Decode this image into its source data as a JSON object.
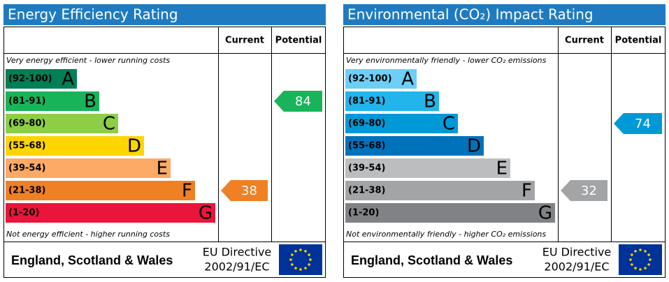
{
  "chart_data": [
    {
      "type": "epc",
      "title": "Energy Efficiency Rating",
      "columns": [
        "Current",
        "Potential"
      ],
      "top_note": "Very energy efficient - lower running costs",
      "bottom_note": "Not energy efficient - higher running costs",
      "categories": [
        "(92-100)",
        "(81-91)",
        "(69-80)",
        "(55-68)",
        "(39-54)",
        "(21-38)",
        "(1-20)"
      ],
      "letters": [
        "A",
        "B",
        "C",
        "D",
        "E",
        "F",
        "G"
      ],
      "colors": [
        "#008054",
        "#19b459",
        "#8dce46",
        "#ffd500",
        "#fcaa65",
        "#ef8023",
        "#e9153b"
      ],
      "current": 38,
      "potential": 84,
      "footer": {
        "region": "England, Scotland & Wales",
        "directive": "EU Directive",
        "code": "2002/91/EC"
      }
    },
    {
      "type": "epc",
      "title": "Environmental (CO₂) Impact Rating",
      "columns": [
        "Current",
        "Potential"
      ],
      "top_note": "Very environmentally friendly - lower CO₂ emissions",
      "bottom_note": "Not environmentally friendly - higher CO₂ emissions",
      "categories": [
        "(92-100)",
        "(81-91)",
        "(69-80)",
        "(55-68)",
        "(39-54)",
        "(21-38)",
        "(1-20)"
      ],
      "letters": [
        "A",
        "B",
        "C",
        "D",
        "E",
        "F",
        "G"
      ],
      "colors": [
        "#6dcff6",
        "#22b5eb",
        "#0099d8",
        "#0072bb",
        "#bbbdbf",
        "#a2a4a6",
        "#808285"
      ],
      "current": 32,
      "potential": 74,
      "footer": {
        "region": "England, Scotland & Wales",
        "directive": "EU Directive",
        "code": "2002/91/EC"
      }
    }
  ]
}
